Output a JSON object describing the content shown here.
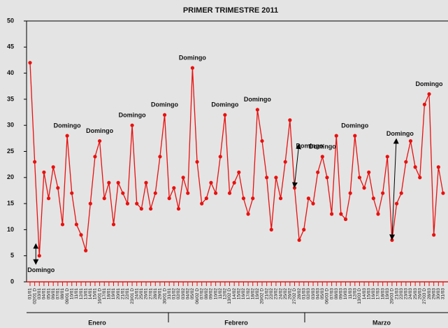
{
  "chart_data": {
    "type": "line",
    "title": "PRIMER TRIMESTRE 2011",
    "categories": [
      "01/01",
      "02/01 D",
      "03/01",
      "04/01",
      "05/01",
      "06/01",
      "07/01",
      "08/01",
      "09/01 D",
      "10/01",
      "11/01",
      "12/01",
      "13/01",
      "14/01",
      "15/01",
      "16/01 D",
      "17/01",
      "18/01",
      "19/01",
      "20/01",
      "21/01",
      "22/01",
      "23/01 D",
      "24/01",
      "25/01",
      "26/01",
      "27/01",
      "28/01",
      "29/01",
      "30/01 D",
      "31/01",
      "01/02",
      "02/02",
      "03/02",
      "04/02",
      "05/02",
      "06/02 D",
      "07/02",
      "08/02",
      "09/02",
      "10/02",
      "11/02",
      "12/02",
      "13/02 D",
      "14/02",
      "15/02",
      "16/02",
      "17/02",
      "18/02",
      "19/02",
      "20/02 D",
      "21/02",
      "22/02",
      "23/02",
      "24/02",
      "25/02",
      "26/02",
      "27/02 D",
      "28/02",
      "01/03",
      "02/03",
      "03/03",
      "04/03",
      "05/03",
      "06/03 D",
      "07/03",
      "08/03",
      "09/03",
      "10/03",
      "11/03",
      "12/03",
      "13/03 D",
      "14/03",
      "15/03",
      "16/03",
      "17/03",
      "18/03",
      "19/03",
      "20/03 D",
      "21/03",
      "22/03",
      "23/03",
      "24/03",
      "25/03",
      "26/03",
      "27/03 D",
      "28/03",
      "29/03",
      "30/03",
      "31/03"
    ],
    "values": [
      42,
      23,
      5,
      21,
      16,
      22,
      18,
      11,
      28,
      17,
      11,
      9,
      6,
      15,
      24,
      27,
      16,
      19,
      11,
      19,
      17,
      15,
      30,
      15,
      14,
      19,
      14,
      17,
      24,
      32,
      16,
      18,
      14,
      20,
      17,
      41,
      23,
      15,
      16,
      19,
      17,
      24,
      32,
      17,
      19,
      21,
      16,
      13,
      16,
      33,
      27,
      20,
      10,
      20,
      16,
      23,
      31,
      18,
      8,
      10,
      16,
      15,
      21,
      24,
      20,
      13,
      28,
      13,
      12,
      17,
      28,
      20,
      18,
      21,
      16,
      13,
      17,
      24,
      8,
      15,
      17,
      23,
      27,
      22,
      20,
      34,
      36,
      9,
      22,
      17
    ],
    "color": "#e8110f",
    "ylim": [
      0,
      50
    ],
    "yticks": [
      0,
      5,
      10,
      15,
      20,
      25,
      30,
      35,
      40,
      45,
      50
    ],
    "months": [
      "Enero",
      "Febrero",
      "Marzo"
    ],
    "annotations": [
      {
        "text": "Domingo",
        "category": "03/01"
      },
      {
        "text": "Domingo",
        "category": "09/01 D"
      },
      {
        "text": "Domingo",
        "category": "16/01 D"
      },
      {
        "text": "Domingo",
        "category": "23/01 D"
      },
      {
        "text": "Domingo",
        "category": "30/01 D"
      },
      {
        "text": "Domingo",
        "category": "05/02"
      },
      {
        "text": "Domingo",
        "category": "12/02"
      },
      {
        "text": "Domingo",
        "category": "19/02"
      },
      {
        "text": "Domingo",
        "category": "27/02 D"
      },
      {
        "text": "Domingo",
        "category": "05/03"
      },
      {
        "text": "Domingo",
        "category": "12/03"
      },
      {
        "text": "Domingo",
        "category": "20/03 D"
      },
      {
        "text": "Domingo",
        "category": "28/03"
      }
    ]
  }
}
